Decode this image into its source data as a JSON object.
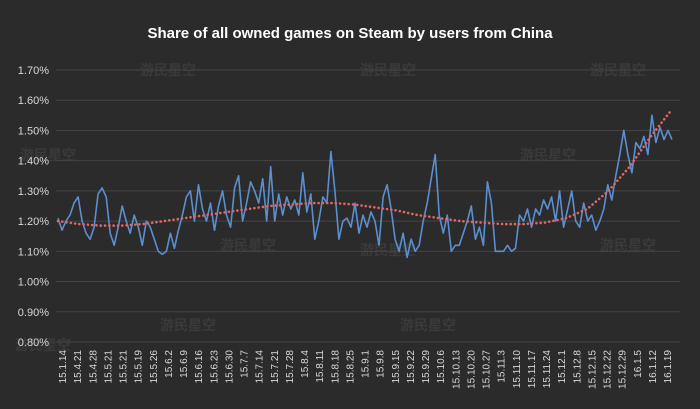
{
  "chart_data": {
    "type": "line",
    "title": "Share of all owned games on Steam by users from China",
    "xlabel": "",
    "ylabel": "",
    "ylim": [
      0.8,
      1.7
    ],
    "yticks": [
      "0.80%",
      "0.90%",
      "1.00%",
      "1.10%",
      "1.20%",
      "1.30%",
      "1.40%",
      "1.50%",
      "1.60%",
      "1.70%"
    ],
    "xticks": [
      "15.1.14",
      "15.4.21",
      "15.4.28",
      "15.5.21",
      "15.5.21",
      "15.5.19",
      "15.5.26",
      "15.6.2",
      "15.6.9",
      "15.6.16",
      "15.6.23",
      "15.6.30",
      "15.7.7",
      "15.7.14",
      "15.7.21",
      "15.7.28",
      "15.8.4",
      "15.8.11",
      "15.8.18",
      "15.8.25",
      "15.9.1",
      "15.9.8",
      "15.9.15",
      "15.9.22",
      "15.9.29",
      "15.10.6",
      "15.10.13",
      "15.10.20",
      "15.10.27",
      "15.11.3",
      "15.11.10",
      "15.11.17",
      "15.11.24",
      "15.12.1",
      "15.12.8",
      "15.12.15",
      "15.12.22",
      "15.12.29",
      "16.1.5",
      "16.1.12",
      "16.1.19"
    ],
    "grid": true,
    "legend": "none",
    "watermark": "游民星空",
    "series": [
      {
        "color": "#5b8fd0",
        "style": "solid",
        "values": [
          1.21,
          1.17,
          1.2,
          1.22,
          1.26,
          1.28,
          1.2,
          1.16,
          1.14,
          1.18,
          1.29,
          1.31,
          1.28,
          1.16,
          1.12,
          1.18,
          1.25,
          1.2,
          1.16,
          1.22,
          1.18,
          1.12,
          1.2,
          1.18,
          1.14,
          1.1,
          1.09,
          1.1,
          1.16,
          1.11,
          1.17,
          1.22,
          1.28,
          1.3,
          1.2,
          1.32,
          1.24,
          1.2,
          1.26,
          1.17,
          1.25,
          1.3,
          1.22,
          1.18,
          1.31,
          1.35,
          1.2,
          1.26,
          1.33,
          1.3,
          1.26,
          1.34,
          1.2,
          1.38,
          1.2,
          1.29,
          1.22,
          1.28,
          1.24,
          1.27,
          1.22,
          1.36,
          1.23,
          1.29,
          1.14,
          1.2,
          1.28,
          1.26,
          1.43,
          1.3,
          1.14,
          1.2,
          1.21,
          1.18,
          1.26,
          1.16,
          1.22,
          1.18,
          1.23,
          1.2,
          1.12,
          1.28,
          1.32,
          1.24,
          1.14,
          1.1,
          1.16,
          1.08,
          1.14,
          1.1,
          1.12,
          1.2,
          1.26,
          1.34,
          1.42,
          1.22,
          1.16,
          1.22,
          1.1,
          1.12,
          1.12,
          1.16,
          1.2,
          1.25,
          1.14,
          1.18,
          1.12,
          1.33,
          1.26,
          1.1,
          1.1,
          1.1,
          1.12,
          1.1,
          1.11,
          1.22,
          1.2,
          1.24,
          1.18,
          1.24,
          1.22,
          1.27,
          1.24,
          1.28,
          1.2,
          1.3,
          1.18,
          1.24,
          1.3,
          1.2,
          1.18,
          1.26,
          1.2,
          1.22,
          1.17,
          1.2,
          1.24,
          1.32,
          1.27,
          1.35,
          1.42,
          1.5,
          1.42,
          1.36,
          1.46,
          1.44,
          1.48,
          1.42,
          1.55,
          1.46,
          1.51,
          1.47,
          1.5,
          1.47
        ]
      },
      {
        "color": "#e06666",
        "style": "dotted",
        "values": [
          1.2,
          1.19,
          1.185,
          1.185,
          1.19,
          1.2,
          1.21,
          1.22,
          1.23,
          1.24,
          1.25,
          1.255,
          1.26,
          1.26,
          1.255,
          1.245,
          1.235,
          1.22,
          1.21,
          1.2,
          1.195,
          1.19,
          1.19,
          1.195,
          1.21,
          1.24,
          1.3,
          1.38,
          1.48,
          1.57
        ]
      }
    ]
  }
}
